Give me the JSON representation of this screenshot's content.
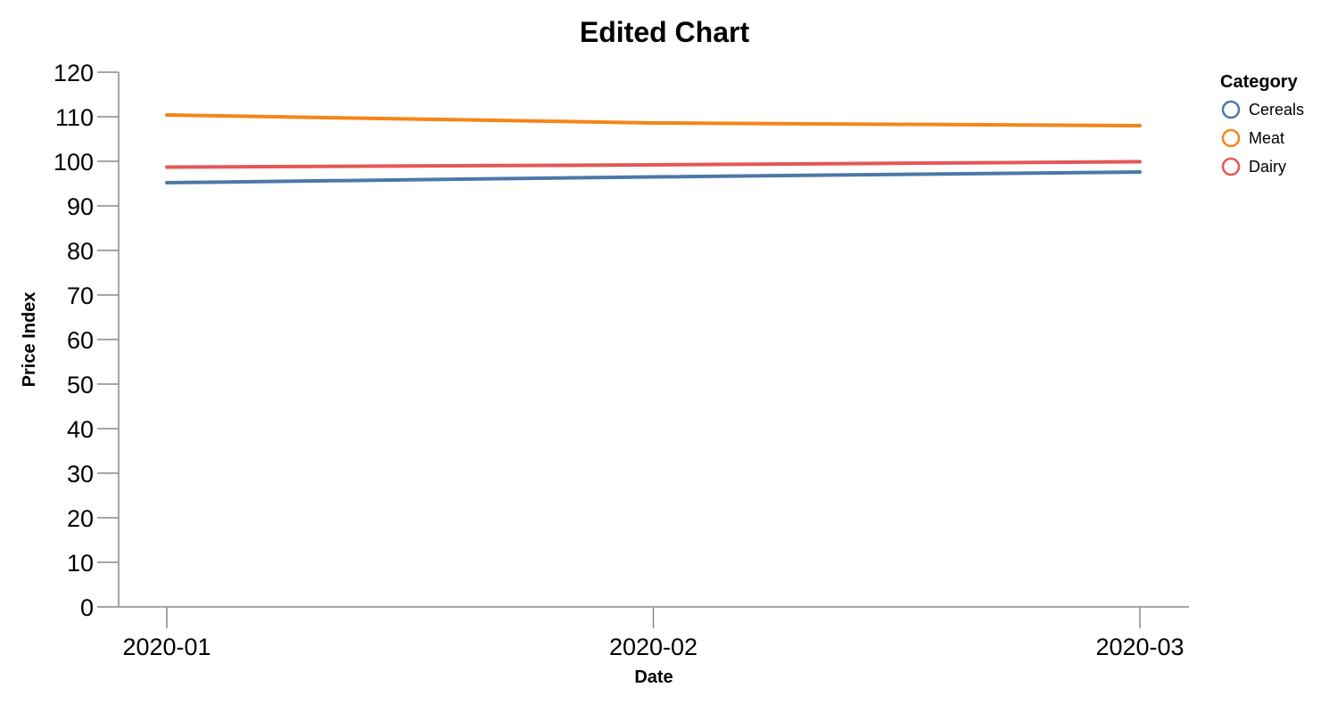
{
  "chart_data": {
    "type": "line",
    "title": "Edited Chart",
    "xlabel": "Date",
    "ylabel": "Price Index",
    "x": [
      "2020-01",
      "2020-02",
      "2020-03"
    ],
    "ylim": [
      0,
      120
    ],
    "yticks": [
      0,
      10,
      20,
      30,
      40,
      50,
      60,
      70,
      80,
      90,
      100,
      110,
      120
    ],
    "grid": false,
    "legend": {
      "title": "Category",
      "placement": "top-right"
    },
    "series": [
      {
        "name": "Cereals",
        "color": "#4c78a8",
        "values": [
          95.2,
          96.5,
          97.6
        ]
      },
      {
        "name": "Meat",
        "color": "#f58518",
        "values": [
          110.4,
          108.6,
          108.0
        ]
      },
      {
        "name": "Dairy",
        "color": "#e45756",
        "values": [
          98.7,
          99.2,
          99.9
        ]
      }
    ]
  }
}
